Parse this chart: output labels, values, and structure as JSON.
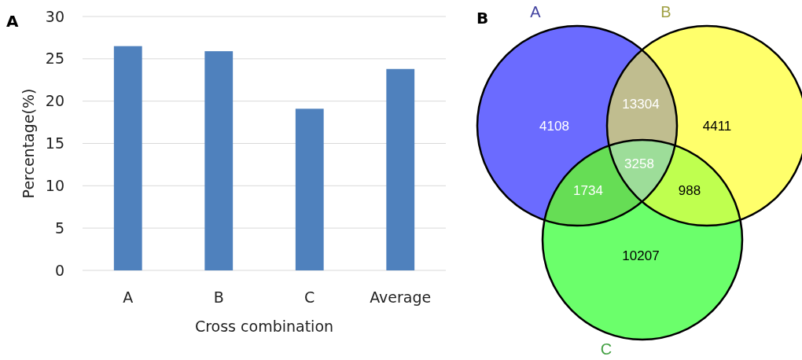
{
  "chart_data": [
    {
      "type": "bar",
      "title": "A",
      "categories": [
        "A",
        "B",
        "C",
        "Average"
      ],
      "values": [
        26.5,
        25.9,
        19.1,
        23.8
      ],
      "color": "#4f81bd",
      "ylim": [
        0,
        30
      ],
      "yticks": [
        0,
        5,
        10,
        15,
        20,
        25,
        30
      ],
      "grid": "y",
      "xlabel": "Cross combination",
      "ylabel": "Percentage(%)"
    },
    {
      "type": "other",
      "title": "B",
      "colors": [
        "#6b6bff",
        "#ffff6b",
        "#6bff6b",
        "#c0bd8f",
        "#66dd55",
        "#bfff4f",
        "#9ddd99"
      ],
      "annotations": [
        "A",
        "B",
        "C",
        "4108",
        "4411",
        "10207",
        "13304",
        "1734",
        "988",
        "3258"
      ]
    }
  ]
}
